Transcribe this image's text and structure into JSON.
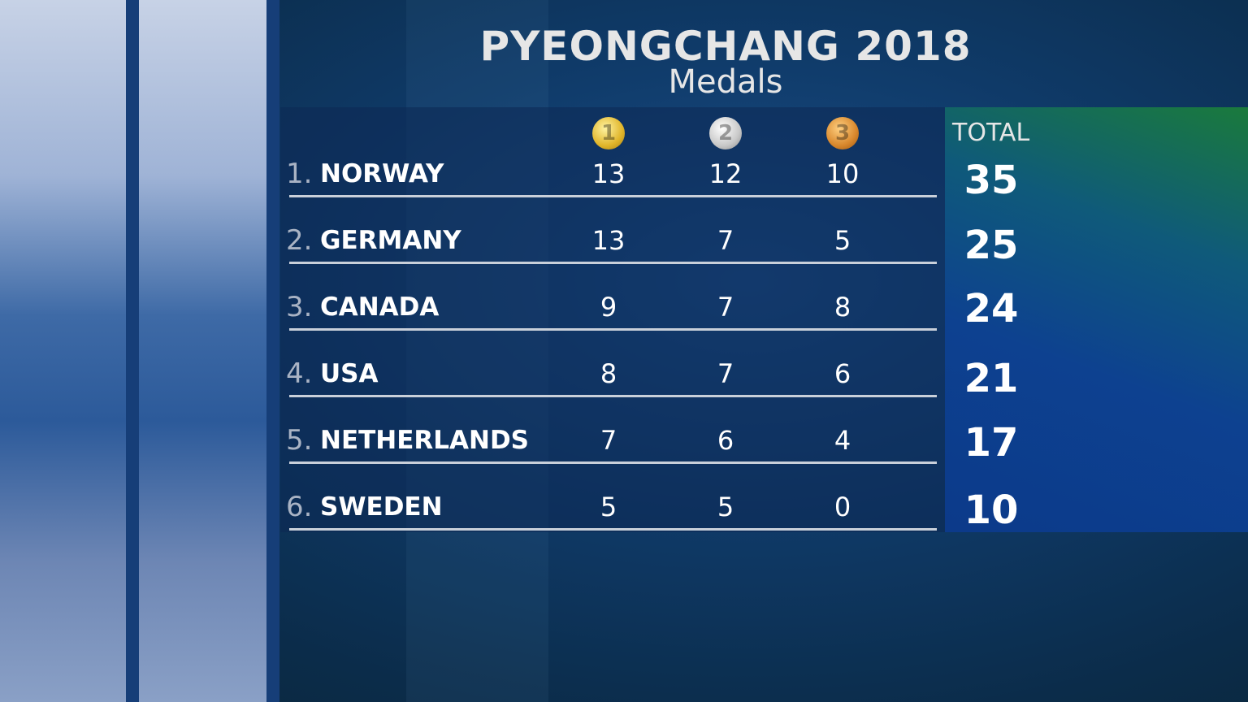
{
  "header": {
    "title": "PYEONGCHANG 2018",
    "subtitle": "Medals"
  },
  "table": {
    "columns": [
      "1",
      "2",
      "3",
      "TOTAL"
    ],
    "rows": [
      [
        "1.",
        "NORWAY",
        13,
        12,
        10,
        35
      ],
      [
        "2.",
        "GERMANY",
        13,
        7,
        5,
        25
      ],
      [
        "3.",
        "CANADA",
        9,
        7,
        8,
        24
      ],
      [
        "4.",
        "USA",
        8,
        7,
        6,
        21
      ],
      [
        "5.",
        "NETHERLANDS",
        7,
        6,
        4,
        17
      ],
      [
        "6.",
        "SWEDEN",
        5,
        5,
        0,
        10
      ]
    ]
  }
}
